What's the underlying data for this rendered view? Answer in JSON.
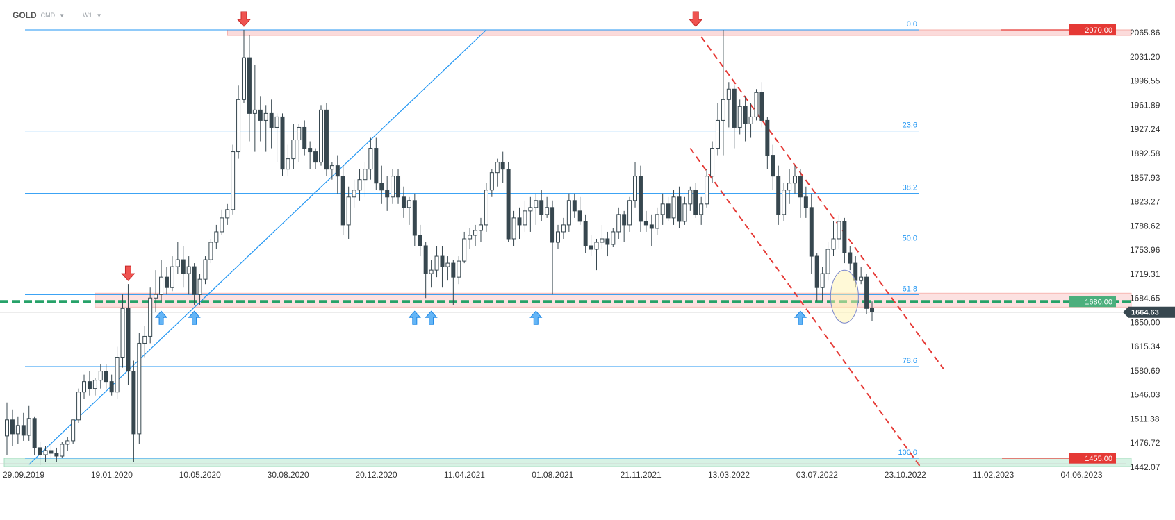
{
  "header": {
    "symbol": "GOLD",
    "instrument_type": "CMD",
    "timeframe": "W1"
  },
  "colors": {
    "bull_fill": "#ffffff",
    "bear_fill": "#37474f",
    "fib_line": "#2196f3",
    "support_line": "#26a269",
    "channel": "#e53935",
    "resistance_zone": "#fbd5d5",
    "support_zone": "#d7f2e4",
    "arrow_up": "#64b5f6",
    "arrow_down": "#ef5350",
    "label_red": "#e53935",
    "label_green": "#4caf7d",
    "label_dark": "#37474f"
  },
  "chart_data": {
    "type": "candlestick",
    "symbol": "GOLD",
    "timeframe": "W1",
    "y_axis": {
      "min": 1440,
      "max": 2090,
      "ticks": [
        "2065.86",
        "2031.20",
        "1996.55",
        "1961.89",
        "1927.24",
        "1892.58",
        "1857.93",
        "1823.27",
        "1788.62",
        "1753.96",
        "1719.31",
        "1684.65",
        "1650.00",
        "1615.34",
        "1580.69",
        "1546.03",
        "1511.38",
        "1476.72",
        "1442.07"
      ]
    },
    "x_axis": {
      "labels": [
        {
          "text": "29.09.2019",
          "week": 0
        },
        {
          "text": "19.01.2020",
          "week": 16
        },
        {
          "text": "10.05.2020",
          "week": 32
        },
        {
          "text": "30.08.2020",
          "week": 48
        },
        {
          "text": "20.12.2020",
          "week": 64
        },
        {
          "text": "11.04.2021",
          "week": 80
        },
        {
          "text": "01.08.2021",
          "week": 96
        },
        {
          "text": "21.11.2021",
          "week": 112
        },
        {
          "text": "13.03.2022",
          "week": 128
        },
        {
          "text": "03.07.2022",
          "week": 144
        },
        {
          "text": "23.10.2022",
          "week": 160
        },
        {
          "text": "11.02.2023",
          "week": 176
        },
        {
          "text": "04.06.2023",
          "week": 192
        }
      ]
    },
    "fibonacci": {
      "high": 2070,
      "low": 1455,
      "levels": [
        {
          "label": "0.0",
          "price": 2070.0
        },
        {
          "label": "23.6",
          "price": 1924.9
        },
        {
          "label": "38.2",
          "price": 1835.1
        },
        {
          "label": "50.0",
          "price": 1762.5
        },
        {
          "label": "61.8",
          "price": 1689.9
        },
        {
          "label": "78.6",
          "price": 1586.6
        },
        {
          "label": "100.0",
          "price": 1455.0
        }
      ]
    },
    "price_labels": {
      "resistance": "2070.00",
      "support": "1680.00",
      "current": "1664.63",
      "low": "1455.00"
    },
    "horizontal_levels": {
      "support_price": 1680,
      "current_price": 1664.63,
      "resistance_zone": [
        2062,
        2070
      ],
      "support_zone": [
        1672,
        1692
      ],
      "low_zone": [
        1443,
        1455
      ]
    },
    "trendline": {
      "from": {
        "week": 4,
        "price": 1446
      },
      "to": {
        "week": 87,
        "price": 2070
      }
    },
    "channel": [
      {
        "from": {
          "week": 126,
          "price": 2060
        },
        "to": {
          "week": 170,
          "price": 1583
        }
      },
      {
        "from": {
          "week": 124,
          "price": 1900
        },
        "to": {
          "week": 166,
          "price": 1440
        }
      }
    ],
    "annotations": {
      "up_arrows_at_weeks": [
        28,
        34,
        74,
        77,
        96,
        144
      ],
      "down_arrows": [
        {
          "week": 22,
          "price": 1705
        },
        {
          "week": 43,
          "price": 2070
        },
        {
          "week": 125,
          "price": 2070
        }
      ],
      "highlight_ellipse": {
        "week": 152,
        "price": 1687
      }
    },
    "candles": [
      {
        "o": 1487,
        "h": 1535,
        "l": 1460,
        "c": 1510
      },
      {
        "o": 1510,
        "h": 1525,
        "l": 1472,
        "c": 1490
      },
      {
        "o": 1490,
        "h": 1515,
        "l": 1475,
        "c": 1502
      },
      {
        "o": 1502,
        "h": 1520,
        "l": 1480,
        "c": 1488
      },
      {
        "o": 1488,
        "h": 1530,
        "l": 1480,
        "c": 1512
      },
      {
        "o": 1512,
        "h": 1515,
        "l": 1460,
        "c": 1470
      },
      {
        "o": 1470,
        "h": 1478,
        "l": 1445,
        "c": 1460
      },
      {
        "o": 1460,
        "h": 1472,
        "l": 1450,
        "c": 1466
      },
      {
        "o": 1466,
        "h": 1475,
        "l": 1455,
        "c": 1462
      },
      {
        "o": 1462,
        "h": 1470,
        "l": 1450,
        "c": 1458
      },
      {
        "o": 1458,
        "h": 1478,
        "l": 1455,
        "c": 1475
      },
      {
        "o": 1475,
        "h": 1485,
        "l": 1465,
        "c": 1480
      },
      {
        "o": 1480,
        "h": 1510,
        "l": 1475,
        "c": 1510
      },
      {
        "o": 1510,
        "h": 1555,
        "l": 1505,
        "c": 1550
      },
      {
        "o": 1550,
        "h": 1575,
        "l": 1540,
        "c": 1565
      },
      {
        "o": 1565,
        "h": 1580,
        "l": 1545,
        "c": 1555
      },
      {
        "o": 1555,
        "h": 1570,
        "l": 1545,
        "c": 1567
      },
      {
        "o": 1567,
        "h": 1590,
        "l": 1555,
        "c": 1580
      },
      {
        "o": 1580,
        "h": 1590,
        "l": 1555,
        "c": 1565
      },
      {
        "o": 1565,
        "h": 1575,
        "l": 1545,
        "c": 1550
      },
      {
        "o": 1550,
        "h": 1615,
        "l": 1540,
        "c": 1600
      },
      {
        "o": 1600,
        "h": 1690,
        "l": 1585,
        "c": 1670
      },
      {
        "o": 1670,
        "h": 1705,
        "l": 1560,
        "c": 1580
      },
      {
        "o": 1580,
        "h": 1595,
        "l": 1450,
        "c": 1490
      },
      {
        "o": 1490,
        "h": 1635,
        "l": 1475,
        "c": 1620
      },
      {
        "o": 1620,
        "h": 1645,
        "l": 1600,
        "c": 1630
      },
      {
        "o": 1630,
        "h": 1700,
        "l": 1620,
        "c": 1685
      },
      {
        "o": 1685,
        "h": 1725,
        "l": 1665,
        "c": 1690
      },
      {
        "o": 1690,
        "h": 1740,
        "l": 1680,
        "c": 1715
      },
      {
        "o": 1715,
        "h": 1730,
        "l": 1690,
        "c": 1700
      },
      {
        "o": 1700,
        "h": 1745,
        "l": 1695,
        "c": 1730
      },
      {
        "o": 1730,
        "h": 1765,
        "l": 1720,
        "c": 1740
      },
      {
        "o": 1740,
        "h": 1760,
        "l": 1700,
        "c": 1720
      },
      {
        "o": 1720,
        "h": 1745,
        "l": 1690,
        "c": 1730
      },
      {
        "o": 1730,
        "h": 1735,
        "l": 1675,
        "c": 1690
      },
      {
        "o": 1690,
        "h": 1720,
        "l": 1675,
        "c": 1712
      },
      {
        "o": 1712,
        "h": 1745,
        "l": 1705,
        "c": 1740
      },
      {
        "o": 1740,
        "h": 1770,
        "l": 1735,
        "c": 1765
      },
      {
        "o": 1765,
        "h": 1790,
        "l": 1755,
        "c": 1780
      },
      {
        "o": 1780,
        "h": 1812,
        "l": 1775,
        "c": 1800
      },
      {
        "o": 1800,
        "h": 1820,
        "l": 1790,
        "c": 1812
      },
      {
        "o": 1812,
        "h": 1905,
        "l": 1805,
        "c": 1895
      },
      {
        "o": 1895,
        "h": 1990,
        "l": 1885,
        "c": 1970
      },
      {
        "o": 1970,
        "h": 2070,
        "l": 1965,
        "c": 2030
      },
      {
        "o": 2030,
        "h": 2062,
        "l": 1910,
        "c": 1950
      },
      {
        "o": 1950,
        "h": 2020,
        "l": 1895,
        "c": 1955
      },
      {
        "o": 1955,
        "h": 1975,
        "l": 1910,
        "c": 1940
      },
      {
        "o": 1940,
        "h": 1962,
        "l": 1895,
        "c": 1950
      },
      {
        "o": 1950,
        "h": 1970,
        "l": 1900,
        "c": 1930
      },
      {
        "o": 1930,
        "h": 1950,
        "l": 1880,
        "c": 1945
      },
      {
        "o": 1945,
        "h": 1950,
        "l": 1860,
        "c": 1870
      },
      {
        "o": 1870,
        "h": 1905,
        "l": 1860,
        "c": 1885
      },
      {
        "o": 1885,
        "h": 1935,
        "l": 1870,
        "c": 1912
      },
      {
        "o": 1912,
        "h": 1935,
        "l": 1880,
        "c": 1930
      },
      {
        "o": 1930,
        "h": 1940,
        "l": 1890,
        "c": 1900
      },
      {
        "o": 1900,
        "h": 1910,
        "l": 1870,
        "c": 1895
      },
      {
        "o": 1895,
        "h": 1900,
        "l": 1870,
        "c": 1880
      },
      {
        "o": 1880,
        "h": 1962,
        "l": 1875,
        "c": 1955
      },
      {
        "o": 1955,
        "h": 1965,
        "l": 1860,
        "c": 1870
      },
      {
        "o": 1870,
        "h": 1880,
        "l": 1855,
        "c": 1875
      },
      {
        "o": 1875,
        "h": 1890,
        "l": 1835,
        "c": 1860
      },
      {
        "o": 1860,
        "h": 1875,
        "l": 1775,
        "c": 1790
      },
      {
        "o": 1790,
        "h": 1845,
        "l": 1770,
        "c": 1830
      },
      {
        "o": 1830,
        "h": 1855,
        "l": 1815,
        "c": 1840
      },
      {
        "o": 1840,
        "h": 1870,
        "l": 1825,
        "c": 1855
      },
      {
        "o": 1855,
        "h": 1880,
        "l": 1830,
        "c": 1870
      },
      {
        "o": 1870,
        "h": 1915,
        "l": 1855,
        "c": 1900
      },
      {
        "o": 1900,
        "h": 1915,
        "l": 1840,
        "c": 1850
      },
      {
        "o": 1850,
        "h": 1875,
        "l": 1820,
        "c": 1840
      },
      {
        "o": 1840,
        "h": 1860,
        "l": 1810,
        "c": 1830
      },
      {
        "o": 1830,
        "h": 1870,
        "l": 1820,
        "c": 1860
      },
      {
        "o": 1860,
        "h": 1870,
        "l": 1820,
        "c": 1830
      },
      {
        "o": 1830,
        "h": 1845,
        "l": 1800,
        "c": 1815
      },
      {
        "o": 1815,
        "h": 1830,
        "l": 1790,
        "c": 1825
      },
      {
        "o": 1825,
        "h": 1835,
        "l": 1760,
        "c": 1775
      },
      {
        "o": 1775,
        "h": 1790,
        "l": 1745,
        "c": 1760
      },
      {
        "o": 1760,
        "h": 1765,
        "l": 1685,
        "c": 1720
      },
      {
        "o": 1720,
        "h": 1740,
        "l": 1700,
        "c": 1725
      },
      {
        "o": 1725,
        "h": 1760,
        "l": 1715,
        "c": 1745
      },
      {
        "o": 1745,
        "h": 1760,
        "l": 1700,
        "c": 1730
      },
      {
        "o": 1730,
        "h": 1745,
        "l": 1710,
        "c": 1735
      },
      {
        "o": 1735,
        "h": 1740,
        "l": 1675,
        "c": 1715
      },
      {
        "o": 1715,
        "h": 1745,
        "l": 1705,
        "c": 1738
      },
      {
        "o": 1738,
        "h": 1780,
        "l": 1735,
        "c": 1770
      },
      {
        "o": 1770,
        "h": 1785,
        "l": 1755,
        "c": 1775
      },
      {
        "o": 1775,
        "h": 1790,
        "l": 1760,
        "c": 1782
      },
      {
        "o": 1782,
        "h": 1800,
        "l": 1765,
        "c": 1790
      },
      {
        "o": 1790,
        "h": 1850,
        "l": 1780,
        "c": 1840
      },
      {
        "o": 1840,
        "h": 1870,
        "l": 1830,
        "c": 1865
      },
      {
        "o": 1865,
        "h": 1885,
        "l": 1845,
        "c": 1880
      },
      {
        "o": 1880,
        "h": 1895,
        "l": 1850,
        "c": 1870
      },
      {
        "o": 1870,
        "h": 1880,
        "l": 1765,
        "c": 1770
      },
      {
        "o": 1770,
        "h": 1810,
        "l": 1760,
        "c": 1800
      },
      {
        "o": 1800,
        "h": 1815,
        "l": 1770,
        "c": 1790
      },
      {
        "o": 1790,
        "h": 1825,
        "l": 1780,
        "c": 1810
      },
      {
        "o": 1810,
        "h": 1830,
        "l": 1780,
        "c": 1815
      },
      {
        "o": 1815,
        "h": 1835,
        "l": 1790,
        "c": 1825
      },
      {
        "o": 1825,
        "h": 1840,
        "l": 1795,
        "c": 1805
      },
      {
        "o": 1805,
        "h": 1830,
        "l": 1800,
        "c": 1815
      },
      {
        "o": 1815,
        "h": 1825,
        "l": 1690,
        "c": 1765
      },
      {
        "o": 1765,
        "h": 1790,
        "l": 1755,
        "c": 1780
      },
      {
        "o": 1780,
        "h": 1800,
        "l": 1770,
        "c": 1790
      },
      {
        "o": 1790,
        "h": 1835,
        "l": 1780,
        "c": 1825
      },
      {
        "o": 1825,
        "h": 1835,
        "l": 1800,
        "c": 1810
      },
      {
        "o": 1810,
        "h": 1830,
        "l": 1790,
        "c": 1795
      },
      {
        "o": 1795,
        "h": 1805,
        "l": 1750,
        "c": 1760
      },
      {
        "o": 1760,
        "h": 1775,
        "l": 1745,
        "c": 1755
      },
      {
        "o": 1755,
        "h": 1770,
        "l": 1725,
        "c": 1765
      },
      {
        "o": 1765,
        "h": 1790,
        "l": 1755,
        "c": 1770
      },
      {
        "o": 1770,
        "h": 1780,
        "l": 1745,
        "c": 1762
      },
      {
        "o": 1762,
        "h": 1785,
        "l": 1758,
        "c": 1780
      },
      {
        "o": 1780,
        "h": 1815,
        "l": 1770,
        "c": 1805
      },
      {
        "o": 1805,
        "h": 1810,
        "l": 1765,
        "c": 1790
      },
      {
        "o": 1790,
        "h": 1830,
        "l": 1780,
        "c": 1825
      },
      {
        "o": 1825,
        "h": 1880,
        "l": 1815,
        "c": 1860
      },
      {
        "o": 1860,
        "h": 1875,
        "l": 1780,
        "c": 1795
      },
      {
        "o": 1795,
        "h": 1810,
        "l": 1780,
        "c": 1790
      },
      {
        "o": 1790,
        "h": 1805,
        "l": 1760,
        "c": 1785
      },
      {
        "o": 1785,
        "h": 1815,
        "l": 1775,
        "c": 1805
      },
      {
        "o": 1805,
        "h": 1835,
        "l": 1790,
        "c": 1820
      },
      {
        "o": 1820,
        "h": 1830,
        "l": 1795,
        "c": 1800
      },
      {
        "o": 1800,
        "h": 1840,
        "l": 1790,
        "c": 1830
      },
      {
        "o": 1830,
        "h": 1845,
        "l": 1785,
        "c": 1795
      },
      {
        "o": 1795,
        "h": 1830,
        "l": 1790,
        "c": 1820
      },
      {
        "o": 1820,
        "h": 1845,
        "l": 1810,
        "c": 1840
      },
      {
        "o": 1840,
        "h": 1850,
        "l": 1800,
        "c": 1805
      },
      {
        "o": 1805,
        "h": 1830,
        "l": 1790,
        "c": 1820
      },
      {
        "o": 1820,
        "h": 1870,
        "l": 1815,
        "c": 1860
      },
      {
        "o": 1860,
        "h": 1910,
        "l": 1850,
        "c": 1900
      },
      {
        "o": 1900,
        "h": 1965,
        "l": 1890,
        "c": 1940
      },
      {
        "o": 1940,
        "h": 2070,
        "l": 1890,
        "c": 1970
      },
      {
        "o": 1970,
        "h": 1995,
        "l": 1930,
        "c": 1985
      },
      {
        "o": 1985,
        "h": 1990,
        "l": 1900,
        "c": 1930
      },
      {
        "o": 1930,
        "h": 1970,
        "l": 1920,
        "c": 1960
      },
      {
        "o": 1960,
        "h": 1975,
        "l": 1910,
        "c": 1935
      },
      {
        "o": 1935,
        "h": 1965,
        "l": 1915,
        "c": 1945
      },
      {
        "o": 1945,
        "h": 1985,
        "l": 1940,
        "c": 1980
      },
      {
        "o": 1980,
        "h": 1995,
        "l": 1930,
        "c": 1940
      },
      {
        "o": 1940,
        "h": 1945,
        "l": 1870,
        "c": 1890
      },
      {
        "o": 1890,
        "h": 1905,
        "l": 1840,
        "c": 1860
      },
      {
        "o": 1860,
        "h": 1875,
        "l": 1790,
        "c": 1805
      },
      {
        "o": 1805,
        "h": 1850,
        "l": 1795,
        "c": 1840
      },
      {
        "o": 1840,
        "h": 1870,
        "l": 1820,
        "c": 1850
      },
      {
        "o": 1850,
        "h": 1875,
        "l": 1835,
        "c": 1860
      },
      {
        "o": 1860,
        "h": 1870,
        "l": 1800,
        "c": 1830
      },
      {
        "o": 1830,
        "h": 1845,
        "l": 1800,
        "c": 1815
      },
      {
        "o": 1815,
        "h": 1835,
        "l": 1720,
        "c": 1745
      },
      {
        "o": 1745,
        "h": 1750,
        "l": 1680,
        "c": 1700
      },
      {
        "o": 1700,
        "h": 1730,
        "l": 1680,
        "c": 1720
      },
      {
        "o": 1720,
        "h": 1765,
        "l": 1710,
        "c": 1755
      },
      {
        "o": 1755,
        "h": 1795,
        "l": 1745,
        "c": 1770
      },
      {
        "o": 1770,
        "h": 1805,
        "l": 1755,
        "c": 1795
      },
      {
        "o": 1795,
        "h": 1800,
        "l": 1735,
        "c": 1750
      },
      {
        "o": 1750,
        "h": 1760,
        "l": 1725,
        "c": 1735
      },
      {
        "o": 1735,
        "h": 1745,
        "l": 1700,
        "c": 1710
      },
      {
        "o": 1710,
        "h": 1730,
        "l": 1705,
        "c": 1715
      },
      {
        "o": 1715,
        "h": 1720,
        "l": 1662,
        "c": 1670
      },
      {
        "o": 1670,
        "h": 1680,
        "l": 1652,
        "c": 1665
      }
    ]
  }
}
